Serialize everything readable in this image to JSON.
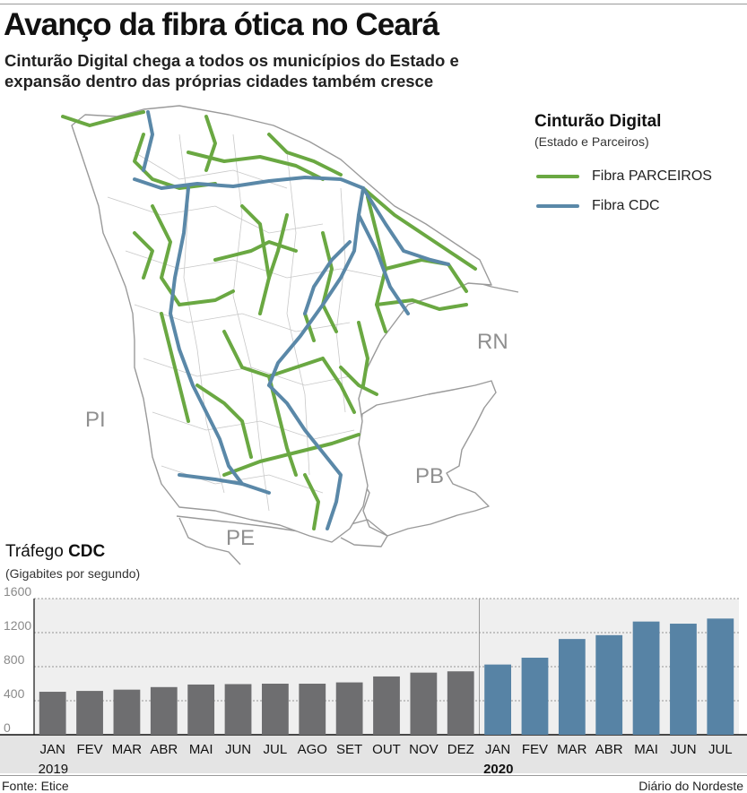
{
  "header": {
    "title": "Avanço da fibra ótica no Ceará",
    "subtitle": "Cinturão Digital chega a todos os municípios do Estado e expansão dentro das próprias cidades também cresce"
  },
  "legend": {
    "title": "Cinturão Digital",
    "subtitle": "(Estado e Parceiros)",
    "items": [
      {
        "label": "Fibra PARCEIROS",
        "color": "#6aa842"
      },
      {
        "label": "Fibra CDC",
        "color": "#5a88a8"
      }
    ]
  },
  "map": {
    "states": {
      "pi": "PI",
      "pe": "PE",
      "pb": "PB",
      "rn": "RN"
    }
  },
  "chart_heading": {
    "prefix": "Tráfego ",
    "bold": "CDC",
    "subtitle": "(Gigabites por segundo)"
  },
  "chart_data": {
    "type": "bar",
    "ylim": [
      0,
      1600
    ],
    "yticks": [
      0,
      400,
      800,
      1200,
      1600
    ],
    "grid": true,
    "categories": [
      "JAN",
      "FEV",
      "MAR",
      "ABR",
      "MAI",
      "JUN",
      "JUL",
      "AGO",
      "SET",
      "OUT",
      "NOV",
      "DEZ",
      "JAN",
      "FEV",
      "MAR",
      "ABR",
      "MAI",
      "JUN",
      "JUL"
    ],
    "groups": [
      {
        "year": "2019",
        "start": 0,
        "end": 11,
        "color": "#6e6e70"
      },
      {
        "year": "2020",
        "start": 12,
        "end": 18,
        "color": "#5783a5"
      }
    ],
    "values": [
      505,
      515,
      530,
      560,
      590,
      595,
      600,
      600,
      615,
      685,
      730,
      745,
      825,
      905,
      1125,
      1170,
      1330,
      1305,
      1365
    ]
  },
  "footer": {
    "source": "Fonte: Etice",
    "credit": "Diário do Nordeste"
  }
}
